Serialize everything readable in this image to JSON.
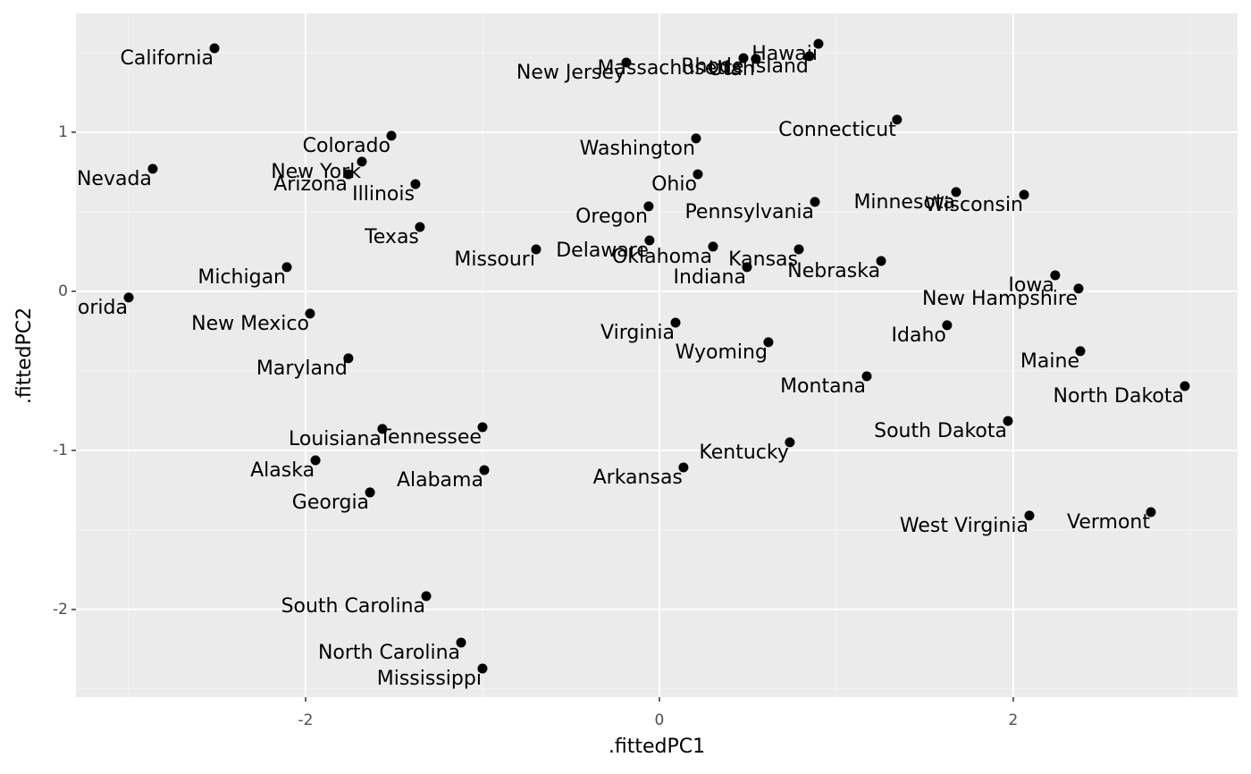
{
  "chart_data": {
    "type": "scatter",
    "x_label": ".fittedPC1",
    "y_label": ".fittedPC2",
    "xlim": [
      -3.298,
      3.268
    ],
    "ylim": [
      -2.551,
      1.747
    ],
    "xticks": [
      -2,
      0,
      2
    ],
    "yticks": [
      -2,
      -1,
      0,
      1
    ],
    "grid": true,
    "color": "#000000",
    "labels": [
      "California",
      "Nevada",
      "Florida",
      "Colorado",
      "New York",
      "Arizona",
      "Illinois",
      "Texas",
      "Michigan",
      "Missouri",
      "New Mexico",
      "Maryland",
      "Louisiana",
      "Tennessee",
      "Alaska",
      "Alabama",
      "Georgia",
      "South Carolina",
      "North Carolina",
      "Mississippi",
      "New Jersey",
      "Massachusetts",
      "Utah",
      "Rhode Island",
      "Hawaii",
      "Connecticut",
      "Washington",
      "Ohio",
      "Oregon",
      "Pennsylvania",
      "Minnesota",
      "Wisconsin",
      "Delaware",
      "Oklahoma",
      "Kansas",
      "Indiana",
      "Nebraska",
      "Iowa",
      "New Hampshire",
      "Idaho",
      "Virginia",
      "Wyoming",
      "Maine",
      "Montana",
      "North Dakota",
      "South Dakota",
      "Kentucky",
      "Arkansas",
      "West Virginia",
      "Vermont"
    ],
    "x": [
      -2.515,
      -2.864,
      -3.0,
      -1.515,
      -1.682,
      -1.758,
      -1.379,
      -1.354,
      -2.106,
      -0.697,
      -1.975,
      -1.758,
      -1.566,
      -1.0,
      -1.944,
      -0.99,
      -1.636,
      -1.318,
      -1.121,
      -1.0,
      -0.187,
      0.475,
      0.545,
      0.848,
      0.899,
      1.343,
      0.207,
      0.217,
      -0.061,
      0.879,
      1.677,
      2.061,
      -0.056,
      0.303,
      0.788,
      0.495,
      1.253,
      2.237,
      2.369,
      1.626,
      0.091,
      0.616,
      2.379,
      1.172,
      2.97,
      1.97,
      0.737,
      0.136,
      2.091,
      2.778
    ],
    "y": [
      1.528,
      0.77,
      -0.039,
      0.978,
      0.815,
      0.736,
      0.674,
      0.404,
      0.152,
      0.264,
      -0.14,
      -0.421,
      -0.865,
      -0.854,
      -1.062,
      -1.124,
      -1.264,
      -1.916,
      -2.208,
      -2.371,
      1.438,
      1.466,
      1.461,
      1.478,
      1.556,
      1.079,
      0.961,
      0.736,
      0.534,
      0.562,
      0.624,
      0.607,
      0.32,
      0.281,
      0.264,
      0.152,
      0.191,
      0.101,
      0.017,
      -0.213,
      -0.197,
      -0.32,
      -0.376,
      -0.534,
      -0.596,
      -0.815,
      -0.949,
      -1.107,
      -1.41,
      -1.388
    ]
  }
}
